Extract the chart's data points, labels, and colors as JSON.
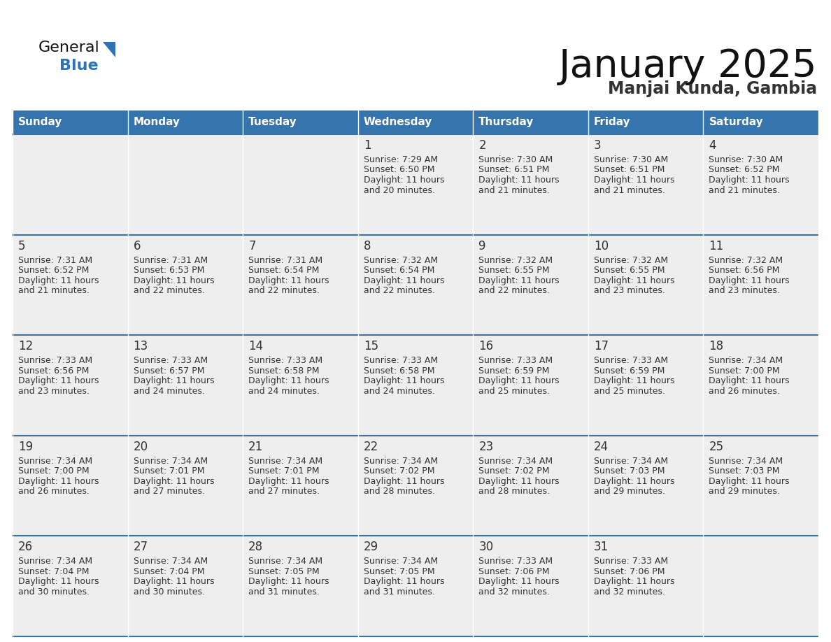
{
  "title": "January 2025",
  "subtitle": "Manjai Kunda, Gambia",
  "header_color": "#3674AE",
  "header_text_color": "#FFFFFF",
  "day_names": [
    "Sunday",
    "Monday",
    "Tuesday",
    "Wednesday",
    "Thursday",
    "Friday",
    "Saturday"
  ],
  "cell_bg_light": "#EEEEEE",
  "cell_bg_white": "#FFFFFF",
  "border_color": "#3674AE",
  "text_color": "#333333",
  "title_color": "#111111",
  "subtitle_color": "#333333",
  "logo_general_color": "#111111",
  "logo_blue_color": "#2E74B5",
  "days": [
    {
      "date": 1,
      "col": 3,
      "row": 0,
      "sunrise": "7:29 AM",
      "sunset": "6:50 PM",
      "daylight": "11 hours and 20 minutes."
    },
    {
      "date": 2,
      "col": 4,
      "row": 0,
      "sunrise": "7:30 AM",
      "sunset": "6:51 PM",
      "daylight": "11 hours and 21 minutes."
    },
    {
      "date": 3,
      "col": 5,
      "row": 0,
      "sunrise": "7:30 AM",
      "sunset": "6:51 PM",
      "daylight": "11 hours and 21 minutes."
    },
    {
      "date": 4,
      "col": 6,
      "row": 0,
      "sunrise": "7:30 AM",
      "sunset": "6:52 PM",
      "daylight": "11 hours and 21 minutes."
    },
    {
      "date": 5,
      "col": 0,
      "row": 1,
      "sunrise": "7:31 AM",
      "sunset": "6:52 PM",
      "daylight": "11 hours and 21 minutes."
    },
    {
      "date": 6,
      "col": 1,
      "row": 1,
      "sunrise": "7:31 AM",
      "sunset": "6:53 PM",
      "daylight": "11 hours and 22 minutes."
    },
    {
      "date": 7,
      "col": 2,
      "row": 1,
      "sunrise": "7:31 AM",
      "sunset": "6:54 PM",
      "daylight": "11 hours and 22 minutes."
    },
    {
      "date": 8,
      "col": 3,
      "row": 1,
      "sunrise": "7:32 AM",
      "sunset": "6:54 PM",
      "daylight": "11 hours and 22 minutes."
    },
    {
      "date": 9,
      "col": 4,
      "row": 1,
      "sunrise": "7:32 AM",
      "sunset": "6:55 PM",
      "daylight": "11 hours and 22 minutes."
    },
    {
      "date": 10,
      "col": 5,
      "row": 1,
      "sunrise": "7:32 AM",
      "sunset": "6:55 PM",
      "daylight": "11 hours and 23 minutes."
    },
    {
      "date": 11,
      "col": 6,
      "row": 1,
      "sunrise": "7:32 AM",
      "sunset": "6:56 PM",
      "daylight": "11 hours and 23 minutes."
    },
    {
      "date": 12,
      "col": 0,
      "row": 2,
      "sunrise": "7:33 AM",
      "sunset": "6:56 PM",
      "daylight": "11 hours and 23 minutes."
    },
    {
      "date": 13,
      "col": 1,
      "row": 2,
      "sunrise": "7:33 AM",
      "sunset": "6:57 PM",
      "daylight": "11 hours and 24 minutes."
    },
    {
      "date": 14,
      "col": 2,
      "row": 2,
      "sunrise": "7:33 AM",
      "sunset": "6:58 PM",
      "daylight": "11 hours and 24 minutes."
    },
    {
      "date": 15,
      "col": 3,
      "row": 2,
      "sunrise": "7:33 AM",
      "sunset": "6:58 PM",
      "daylight": "11 hours and 24 minutes."
    },
    {
      "date": 16,
      "col": 4,
      "row": 2,
      "sunrise": "7:33 AM",
      "sunset": "6:59 PM",
      "daylight": "11 hours and 25 minutes."
    },
    {
      "date": 17,
      "col": 5,
      "row": 2,
      "sunrise": "7:33 AM",
      "sunset": "6:59 PM",
      "daylight": "11 hours and 25 minutes."
    },
    {
      "date": 18,
      "col": 6,
      "row": 2,
      "sunrise": "7:34 AM",
      "sunset": "7:00 PM",
      "daylight": "11 hours and 26 minutes."
    },
    {
      "date": 19,
      "col": 0,
      "row": 3,
      "sunrise": "7:34 AM",
      "sunset": "7:00 PM",
      "daylight": "11 hours and 26 minutes."
    },
    {
      "date": 20,
      "col": 1,
      "row": 3,
      "sunrise": "7:34 AM",
      "sunset": "7:01 PM",
      "daylight": "11 hours and 27 minutes."
    },
    {
      "date": 21,
      "col": 2,
      "row": 3,
      "sunrise": "7:34 AM",
      "sunset": "7:01 PM",
      "daylight": "11 hours and 27 minutes."
    },
    {
      "date": 22,
      "col": 3,
      "row": 3,
      "sunrise": "7:34 AM",
      "sunset": "7:02 PM",
      "daylight": "11 hours and 28 minutes."
    },
    {
      "date": 23,
      "col": 4,
      "row": 3,
      "sunrise": "7:34 AM",
      "sunset": "7:02 PM",
      "daylight": "11 hours and 28 minutes."
    },
    {
      "date": 24,
      "col": 5,
      "row": 3,
      "sunrise": "7:34 AM",
      "sunset": "7:03 PM",
      "daylight": "11 hours and 29 minutes."
    },
    {
      "date": 25,
      "col": 6,
      "row": 3,
      "sunrise": "7:34 AM",
      "sunset": "7:03 PM",
      "daylight": "11 hours and 29 minutes."
    },
    {
      "date": 26,
      "col": 0,
      "row": 4,
      "sunrise": "7:34 AM",
      "sunset": "7:04 PM",
      "daylight": "11 hours and 30 minutes."
    },
    {
      "date": 27,
      "col": 1,
      "row": 4,
      "sunrise": "7:34 AM",
      "sunset": "7:04 PM",
      "daylight": "11 hours and 30 minutes."
    },
    {
      "date": 28,
      "col": 2,
      "row": 4,
      "sunrise": "7:34 AM",
      "sunset": "7:05 PM",
      "daylight": "11 hours and 31 minutes."
    },
    {
      "date": 29,
      "col": 3,
      "row": 4,
      "sunrise": "7:34 AM",
      "sunset": "7:05 PM",
      "daylight": "11 hours and 31 minutes."
    },
    {
      "date": 30,
      "col": 4,
      "row": 4,
      "sunrise": "7:33 AM",
      "sunset": "7:06 PM",
      "daylight": "11 hours and 32 minutes."
    },
    {
      "date": 31,
      "col": 5,
      "row": 4,
      "sunrise": "7:33 AM",
      "sunset": "7:06 PM",
      "daylight": "11 hours and 32 minutes."
    }
  ]
}
